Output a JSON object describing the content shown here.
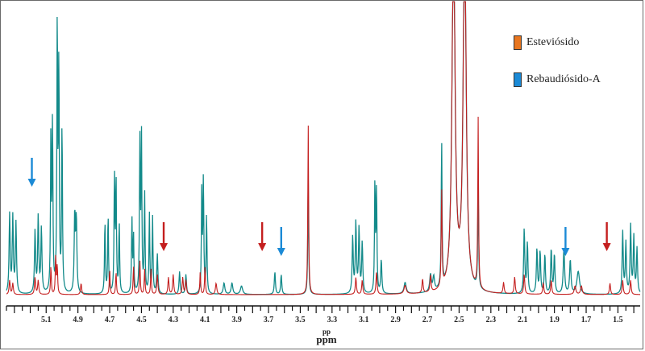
{
  "chart_data": {
    "type": "line",
    "title": "",
    "xlabel": "ppm",
    "xlabel_sub": "pp",
    "x_reversed": true,
    "xlim": [
      5.35,
      1.36
    ],
    "ylim": [
      0,
      100
    ],
    "legend": [
      {
        "name": "Esteviósido",
        "color": "#e8761f"
      },
      {
        "name": "Rebaudiósido-A",
        "color": "#1b8ad6"
      }
    ],
    "legend_position": "top-right",
    "tick_labels": [
      {
        "x": 5.1,
        "text": "5.1"
      },
      {
        "x": 4.9,
        "text": "4.9"
      },
      {
        "x": 4.7,
        "text": "4.7"
      },
      {
        "x": 4.5,
        "text": "4.5"
      },
      {
        "x": 4.3,
        "text": "4.3"
      },
      {
        "x": 4.1,
        "text": "4.1"
      },
      {
        "x": 3.9,
        "text": "3.9"
      },
      {
        "x": 3.7,
        "text": "3.7"
      },
      {
        "x": 3.5,
        "text": "3.5"
      },
      {
        "x": 3.3,
        "text": "3.3"
      },
      {
        "x": 3.1,
        "text": "3.1"
      },
      {
        "x": 2.9,
        "text": "2.9"
      },
      {
        "x": 2.7,
        "text": "2.7"
      },
      {
        "x": 2.5,
        "text": "2.5"
      },
      {
        "x": 2.3,
        "text": "2.3"
      },
      {
        "x": 2.1,
        "text": "2.1"
      },
      {
        "x": 1.9,
        "text": "1.9"
      },
      {
        "x": 1.7,
        "text": "1.7"
      },
      {
        "x": 1.5,
        "text": "1.5"
      }
    ],
    "series": [
      {
        "color": "#138a8a",
        "peaks": [
          [
            5.33,
            28,
            0.004
          ],
          [
            5.31,
            27,
            0.004
          ],
          [
            5.29,
            25,
            0.004
          ],
          [
            5.17,
            22,
            0.004
          ],
          [
            5.15,
            27,
            0.004
          ],
          [
            5.13,
            23,
            0.004
          ],
          [
            5.07,
            56,
            0.003
          ],
          [
            5.06,
            60,
            0.003
          ],
          [
            5.03,
            97,
            0.003
          ],
          [
            5.02,
            80,
            0.003
          ],
          [
            5.0,
            60,
            0.003
          ],
          [
            4.92,
            28,
            0.004
          ],
          [
            4.91,
            26,
            0.004
          ],
          [
            4.73,
            26,
            0.003
          ],
          [
            4.71,
            28,
            0.003
          ],
          [
            4.67,
            42,
            0.003
          ],
          [
            4.66,
            40,
            0.003
          ],
          [
            4.64,
            25,
            0.003
          ],
          [
            4.56,
            26,
            0.003
          ],
          [
            4.55,
            20,
            0.003
          ],
          [
            4.51,
            53,
            0.003
          ],
          [
            4.5,
            55,
            0.003
          ],
          [
            4.48,
            35,
            0.003
          ],
          [
            4.45,
            28,
            0.003
          ],
          [
            4.43,
            27,
            0.003
          ],
          [
            4.4,
            14,
            0.004
          ],
          [
            4.26,
            8,
            0.004
          ],
          [
            4.22,
            7,
            0.004
          ],
          [
            4.12,
            37,
            0.003
          ],
          [
            4.11,
            40,
            0.003
          ],
          [
            4.09,
            28,
            0.003
          ],
          [
            3.98,
            4,
            0.006
          ],
          [
            3.93,
            4,
            0.006
          ],
          [
            3.87,
            3,
            0.008
          ],
          [
            3.66,
            8,
            0.004
          ],
          [
            3.62,
            7,
            0.004
          ],
          [
            3.45,
            42,
            0.003
          ],
          [
            3.17,
            20,
            0.004
          ],
          [
            3.15,
            25,
            0.004
          ],
          [
            3.13,
            23,
            0.004
          ],
          [
            3.11,
            18,
            0.004
          ],
          [
            3.03,
            40,
            0.003
          ],
          [
            3.02,
            37,
            0.003
          ],
          [
            2.99,
            12,
            0.004
          ],
          [
            2.84,
            4,
            0.008
          ],
          [
            2.68,
            6,
            0.006
          ],
          [
            2.66,
            5,
            0.006
          ],
          [
            2.61,
            52,
            0.003
          ],
          [
            2.535,
            130,
            0.011
          ],
          [
            2.465,
            130,
            0.011
          ],
          [
            2.38,
            38,
            0.003
          ],
          [
            2.09,
            23,
            0.004
          ],
          [
            2.07,
            18,
            0.004
          ],
          [
            2.01,
            16,
            0.004
          ],
          [
            1.99,
            15,
            0.004
          ],
          [
            1.96,
            14,
            0.004
          ],
          [
            1.92,
            16,
            0.004
          ],
          [
            1.9,
            14,
            0.004
          ],
          [
            1.84,
            16,
            0.005
          ],
          [
            1.8,
            12,
            0.005
          ],
          [
            1.75,
            8,
            0.01
          ],
          [
            1.47,
            22,
            0.004
          ],
          [
            1.45,
            18,
            0.004
          ],
          [
            1.42,
            24,
            0.004
          ],
          [
            1.4,
            20,
            0.004
          ],
          [
            1.38,
            16,
            0.004
          ]
        ]
      },
      {
        "color": "#c41f1f",
        "peaks": [
          [
            5.33,
            5,
            0.004
          ],
          [
            5.31,
            4,
            0.004
          ],
          [
            5.17,
            6,
            0.004
          ],
          [
            5.15,
            5,
            0.004
          ],
          [
            5.07,
            10,
            0.003
          ],
          [
            5.04,
            14,
            0.003
          ],
          [
            5.03,
            10,
            0.003
          ],
          [
            4.88,
            4,
            0.004
          ],
          [
            4.7,
            9,
            0.003
          ],
          [
            4.66,
            8,
            0.003
          ],
          [
            4.55,
            10,
            0.003
          ],
          [
            4.51,
            12,
            0.003
          ],
          [
            4.48,
            9,
            0.003
          ],
          [
            4.44,
            9,
            0.003
          ],
          [
            4.4,
            7,
            0.004
          ],
          [
            4.33,
            6,
            0.004
          ],
          [
            4.3,
            7,
            0.004
          ],
          [
            4.24,
            6,
            0.004
          ],
          [
            4.22,
            5,
            0.004
          ],
          [
            4.13,
            8,
            0.003
          ],
          [
            4.1,
            10,
            0.003
          ],
          [
            4.03,
            4,
            0.005
          ],
          [
            3.45,
            60,
            0.003
          ],
          [
            3.15,
            6,
            0.004
          ],
          [
            3.11,
            5,
            0.004
          ],
          [
            3.02,
            8,
            0.004
          ],
          [
            2.84,
            3,
            0.008
          ],
          [
            2.73,
            5,
            0.004
          ],
          [
            2.68,
            6,
            0.004
          ],
          [
            2.61,
            35,
            0.003
          ],
          [
            2.535,
            130,
            0.011
          ],
          [
            2.465,
            130,
            0.011
          ],
          [
            2.38,
            60,
            0.003
          ],
          [
            2.22,
            4,
            0.004
          ],
          [
            2.15,
            6,
            0.004
          ],
          [
            2.09,
            7,
            0.004
          ],
          [
            1.97,
            4,
            0.004
          ],
          [
            1.92,
            5,
            0.004
          ],
          [
            1.77,
            3,
            0.006
          ],
          [
            1.73,
            3,
            0.006
          ],
          [
            1.55,
            4,
            0.004
          ],
          [
            1.47,
            5,
            0.004
          ],
          [
            1.42,
            5,
            0.004
          ]
        ]
      }
    ],
    "arrows": [
      {
        "x": 5.19,
        "color": "#1b8ad6"
      },
      {
        "x": 4.36,
        "color": "#c41f1f"
      },
      {
        "x": 3.74,
        "color": "#c41f1f"
      },
      {
        "x": 3.62,
        "color": "#1b8ad6"
      },
      {
        "x": 1.83,
        "color": "#1b8ad6"
      },
      {
        "x": 1.57,
        "color": "#c41f1f"
      }
    ]
  }
}
